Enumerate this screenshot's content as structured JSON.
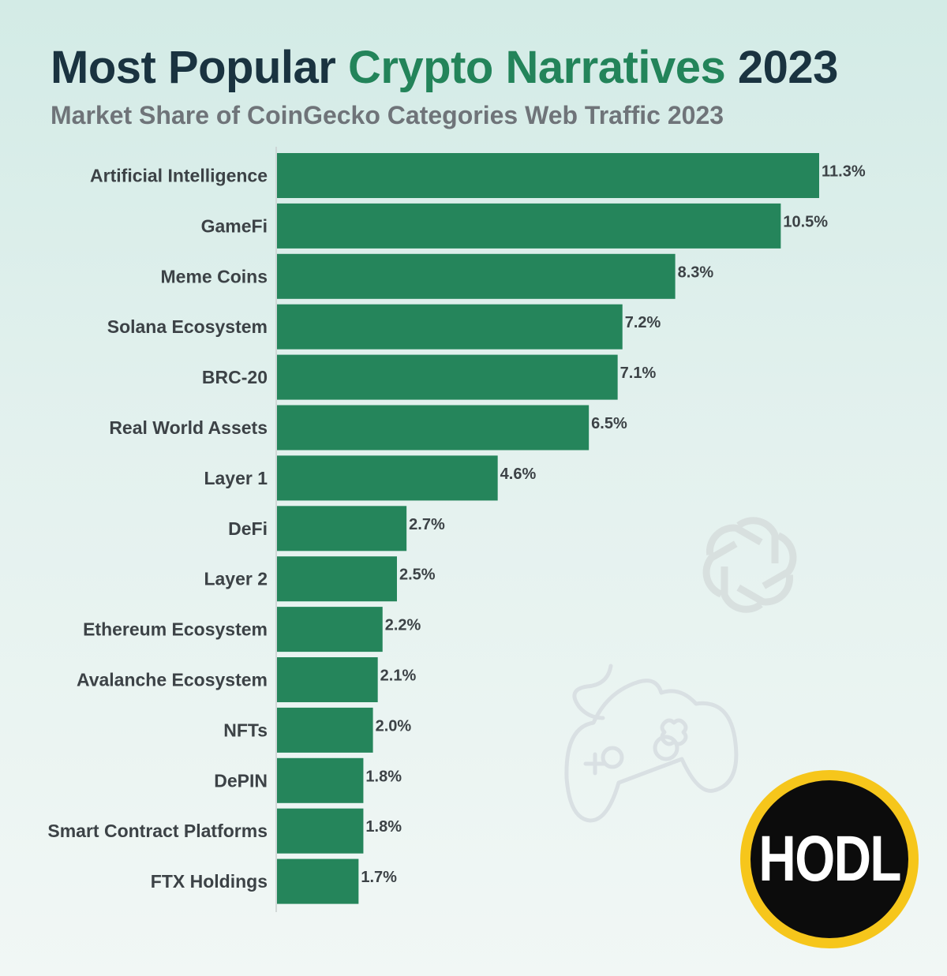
{
  "header": {
    "title_part1": "Most Popular ",
    "title_accent": "Crypto Narratives",
    "title_part2": " 2023",
    "subtitle": "Market Share of CoinGecko Categories Web Traffic 2023"
  },
  "colors": {
    "bar": "#25855b",
    "title_accent": "#23845a",
    "title": "#1a3340",
    "logo_ring": "#f6c61b",
    "logo_fill": "#0c0c0c"
  },
  "chart_data": {
    "type": "bar",
    "orientation": "horizontal",
    "title": "Most Popular Crypto Narratives 2023",
    "subtitle": "Market Share of CoinGecko Categories Web Traffic 2023",
    "categories": [
      "Artificial Intelligence",
      "GameFi",
      "Meme Coins",
      "Solana Ecosystem",
      "BRC-20",
      "Real World Assets",
      "Layer 1",
      "DeFi",
      "Layer 2",
      "Ethereum Ecosystem",
      "Avalanche Ecosystem",
      "NFTs",
      "DePIN",
      "Smart Contract Platforms",
      "FTX Holdings"
    ],
    "values": [
      11.3,
      10.5,
      8.3,
      7.2,
      7.1,
      6.5,
      4.6,
      2.7,
      2.5,
      2.2,
      2.1,
      2.0,
      1.8,
      1.8,
      1.7
    ],
    "value_labels": [
      "11.3%",
      "10.5%",
      "8.3%",
      "7.2%",
      "7.1%",
      "6.5%",
      "4.6%",
      "2.7%",
      "2.5%",
      "2.2%",
      "2.1%",
      "2.0%",
      "1.8%",
      "1.8%",
      "1.7%"
    ],
    "unit": "%",
    "xlim": [
      0,
      11.3
    ],
    "grid": false,
    "legend": "none"
  },
  "decorations": {
    "watermark_top": "openai-logo-icon",
    "watermark_bottom": "gamepad-icon"
  },
  "logo": {
    "text": "HODL"
  }
}
